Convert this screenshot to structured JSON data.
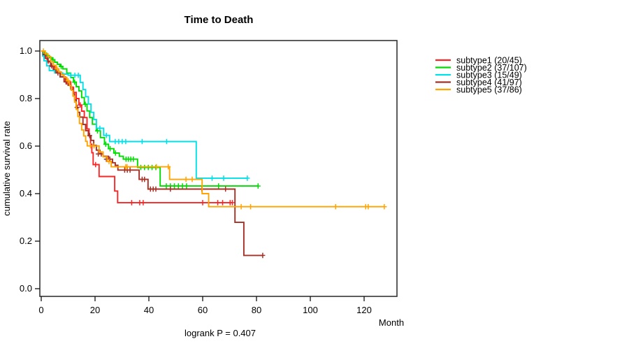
{
  "chart_data": {
    "type": "line",
    "variant": "kaplan-meier-step",
    "title": "Time to Death",
    "xlabel": "Month",
    "ylabel": "cumulative survival rate",
    "annotation": "logrank P = 0.407",
    "xlim": [
      0,
      132
    ],
    "ylim": [
      0,
      1.04
    ],
    "grid": false,
    "legend_position": "right-outside",
    "xticks": [
      0,
      20,
      40,
      60,
      80,
      100,
      120
    ],
    "xtick_labels": [
      "0",
      "20",
      "40",
      "60",
      "80",
      "100",
      "120"
    ],
    "ytick_labels": [
      "1.0",
      "0.8",
      "0.6",
      "0.4",
      "0.2",
      "0.0"
    ],
    "series": [
      {
        "name": "subtype1 (20/45)",
        "color": "#fb2525",
        "steps": [
          [
            0,
            1.0
          ],
          [
            1,
            0.978
          ],
          [
            2.2,
            0.957
          ],
          [
            3.5,
            0.935
          ],
          [
            5,
            0.913
          ],
          [
            7,
            0.891
          ],
          [
            9,
            0.87
          ],
          [
            11,
            0.848
          ],
          [
            12,
            0.826
          ],
          [
            13,
            0.8
          ],
          [
            14,
            0.773
          ],
          [
            15,
            0.747
          ],
          [
            16,
            0.72
          ],
          [
            17,
            0.672
          ],
          [
            17.8,
            0.643
          ],
          [
            18.3,
            0.608
          ],
          [
            18.8,
            0.572
          ],
          [
            19.3,
            0.522
          ],
          [
            21.5,
            0.472
          ],
          [
            27.3,
            0.411
          ],
          [
            28.4,
            0.362
          ],
          [
            71,
            0.362
          ]
        ],
        "censors": [
          [
            2.6,
            0.957
          ],
          [
            9.5,
            0.87
          ],
          [
            14.5,
            0.773
          ],
          [
            20.2,
            0.522
          ],
          [
            33.6,
            0.362
          ],
          [
            36.6,
            0.362
          ],
          [
            37.9,
            0.362
          ],
          [
            60,
            0.362
          ],
          [
            65.6,
            0.362
          ],
          [
            67.4,
            0.362
          ],
          [
            70.2,
            0.362
          ],
          [
            71,
            0.362
          ]
        ]
      },
      {
        "name": "subtype2 (37/107)",
        "color": "#00dd00",
        "steps": [
          [
            0,
            1.0
          ],
          [
            1,
            0.991
          ],
          [
            2,
            0.981
          ],
          [
            3,
            0.972
          ],
          [
            4,
            0.963
          ],
          [
            5,
            0.953
          ],
          [
            6,
            0.944
          ],
          [
            7,
            0.935
          ],
          [
            8,
            0.925
          ],
          [
            9.5,
            0.907
          ],
          [
            11,
            0.888
          ],
          [
            12,
            0.869
          ],
          [
            13,
            0.85
          ],
          [
            14,
            0.832
          ],
          [
            15,
            0.804
          ],
          [
            16,
            0.776
          ],
          [
            17,
            0.748
          ],
          [
            18,
            0.72
          ],
          [
            19,
            0.692
          ],
          [
            20.5,
            0.664
          ],
          [
            22,
            0.636
          ],
          [
            23.5,
            0.608
          ],
          [
            25,
            0.589
          ],
          [
            27,
            0.571
          ],
          [
            29,
            0.557
          ],
          [
            30.5,
            0.545
          ],
          [
            35.8,
            0.51
          ],
          [
            44.2,
            0.432
          ],
          [
            80.6,
            0.432
          ]
        ],
        "censors": [
          [
            4.4,
            0.963
          ],
          [
            7.4,
            0.935
          ],
          [
            12.4,
            0.869
          ],
          [
            16.4,
            0.776
          ],
          [
            20.9,
            0.664
          ],
          [
            24,
            0.608
          ],
          [
            25.6,
            0.589
          ],
          [
            27.6,
            0.571
          ],
          [
            31.5,
            0.545
          ],
          [
            32.4,
            0.545
          ],
          [
            33.3,
            0.545
          ],
          [
            34.2,
            0.545
          ],
          [
            37,
            0.51
          ],
          [
            38.4,
            0.51
          ],
          [
            39.8,
            0.51
          ],
          [
            41.2,
            0.51
          ],
          [
            42.6,
            0.51
          ],
          [
            46.5,
            0.432
          ],
          [
            48,
            0.432
          ],
          [
            49.5,
            0.432
          ],
          [
            51,
            0.432
          ],
          [
            52.5,
            0.432
          ],
          [
            54,
            0.432
          ],
          [
            65.9,
            0.432
          ],
          [
            80.6,
            0.432
          ]
        ]
      },
      {
        "name": "subtype3 (15/49)",
        "color": "#00e0e8",
        "steps": [
          [
            0,
            1.0
          ],
          [
            0.5,
            0.979
          ],
          [
            1,
            0.959
          ],
          [
            2,
            0.938
          ],
          [
            3,
            0.918
          ],
          [
            5,
            0.908
          ],
          [
            8,
            0.903
          ],
          [
            10,
            0.898
          ],
          [
            14.5,
            0.868
          ],
          [
            15.5,
            0.838
          ],
          [
            16.5,
            0.808
          ],
          [
            17.5,
            0.777
          ],
          [
            18.5,
            0.742
          ],
          [
            19.5,
            0.712
          ],
          [
            20.5,
            0.675
          ],
          [
            23.2,
            0.645
          ],
          [
            25.4,
            0.619
          ],
          [
            57.6,
            0.465
          ],
          [
            76.6,
            0.465
          ]
        ],
        "censors": [
          [
            11,
            0.898
          ],
          [
            12.5,
            0.898
          ],
          [
            13.8,
            0.898
          ],
          [
            21.8,
            0.675
          ],
          [
            24.2,
            0.645
          ],
          [
            27.5,
            0.619
          ],
          [
            28.8,
            0.619
          ],
          [
            30.1,
            0.619
          ],
          [
            31.4,
            0.619
          ],
          [
            37.5,
            0.619
          ],
          [
            46.6,
            0.619
          ],
          [
            63.5,
            0.465
          ],
          [
            67.8,
            0.465
          ],
          [
            76.6,
            0.465
          ]
        ]
      },
      {
        "name": "subtype4 (41/97)",
        "color": "#a53026",
        "steps": [
          [
            0,
            1.0
          ],
          [
            0.7,
            0.985
          ],
          [
            1.5,
            0.969
          ],
          [
            2.5,
            0.954
          ],
          [
            3.5,
            0.938
          ],
          [
            4.5,
            0.923
          ],
          [
            5.5,
            0.908
          ],
          [
            7,
            0.892
          ],
          [
            8.5,
            0.871
          ],
          [
            10,
            0.856
          ],
          [
            11,
            0.84
          ],
          [
            11.8,
            0.82
          ],
          [
            12.4,
            0.794
          ],
          [
            13,
            0.763
          ],
          [
            13.6,
            0.742
          ],
          [
            14.3,
            0.722
          ],
          [
            15.5,
            0.691
          ],
          [
            16.5,
            0.665
          ],
          [
            17.5,
            0.644
          ],
          [
            18.5,
            0.624
          ],
          [
            19.5,
            0.603
          ],
          [
            20.5,
            0.583
          ],
          [
            21.8,
            0.567
          ],
          [
            23,
            0.557
          ],
          [
            25,
            0.545
          ],
          [
            26.5,
            0.53
          ],
          [
            27.5,
            0.519
          ],
          [
            28.5,
            0.499
          ],
          [
            36.4,
            0.46
          ],
          [
            39.7,
            0.419
          ],
          [
            72,
            0.279
          ],
          [
            75.3,
            0.14
          ],
          [
            82.5,
            0.14
          ]
        ],
        "censors": [
          [
            3.9,
            0.938
          ],
          [
            6.2,
            0.908
          ],
          [
            9.2,
            0.871
          ],
          [
            13.3,
            0.763
          ],
          [
            18,
            0.644
          ],
          [
            21.2,
            0.567
          ],
          [
            22.3,
            0.567
          ],
          [
            24.2,
            0.545
          ],
          [
            25.5,
            0.545
          ],
          [
            31,
            0.499
          ],
          [
            32,
            0.499
          ],
          [
            33,
            0.499
          ],
          [
            37.5,
            0.46
          ],
          [
            38.4,
            0.46
          ],
          [
            40.6,
            0.419
          ],
          [
            41.6,
            0.419
          ],
          [
            42.6,
            0.419
          ],
          [
            48,
            0.419
          ],
          [
            59.7,
            0.419
          ],
          [
            68.5,
            0.419
          ],
          [
            82.3,
            0.14
          ]
        ]
      },
      {
        "name": "subtype5 (37/86)",
        "color": "#ffa400",
        "steps": [
          [
            0,
            1.0
          ],
          [
            1.5,
            0.988
          ],
          [
            2.5,
            0.977
          ],
          [
            3.5,
            0.955
          ],
          [
            4.5,
            0.94
          ],
          [
            5.5,
            0.925
          ],
          [
            6.5,
            0.912
          ],
          [
            7.5,
            0.9
          ],
          [
            8.5,
            0.889
          ],
          [
            9.5,
            0.875
          ],
          [
            10.5,
            0.855
          ],
          [
            11.2,
            0.835
          ],
          [
            11.8,
            0.81
          ],
          [
            12.4,
            0.785
          ],
          [
            13,
            0.755
          ],
          [
            13.6,
            0.725
          ],
          [
            14.2,
            0.695
          ],
          [
            15,
            0.668
          ],
          [
            15.8,
            0.643
          ],
          [
            16.5,
            0.62
          ],
          [
            17.1,
            0.601
          ],
          [
            21.5,
            0.575
          ],
          [
            23,
            0.555
          ],
          [
            24.5,
            0.535
          ],
          [
            26,
            0.513
          ],
          [
            47.7,
            0.46
          ],
          [
            59.8,
            0.4
          ],
          [
            62.2,
            0.345
          ],
          [
            127.5,
            0.345
          ]
        ],
        "censors": [
          [
            0.8,
            1.0
          ],
          [
            5.9,
            0.925
          ],
          [
            10,
            0.875
          ],
          [
            18.3,
            0.601
          ],
          [
            19.6,
            0.601
          ],
          [
            25.2,
            0.535
          ],
          [
            31.4,
            0.513
          ],
          [
            31.9,
            0.513
          ],
          [
            42.8,
            0.513
          ],
          [
            47.2,
            0.513
          ],
          [
            53.8,
            0.46
          ],
          [
            56.1,
            0.46
          ],
          [
            74.3,
            0.345
          ],
          [
            77.8,
            0.345
          ],
          [
            109.4,
            0.345
          ],
          [
            120.6,
            0.345
          ],
          [
            121.5,
            0.345
          ],
          [
            127.5,
            0.345
          ]
        ]
      }
    ]
  }
}
